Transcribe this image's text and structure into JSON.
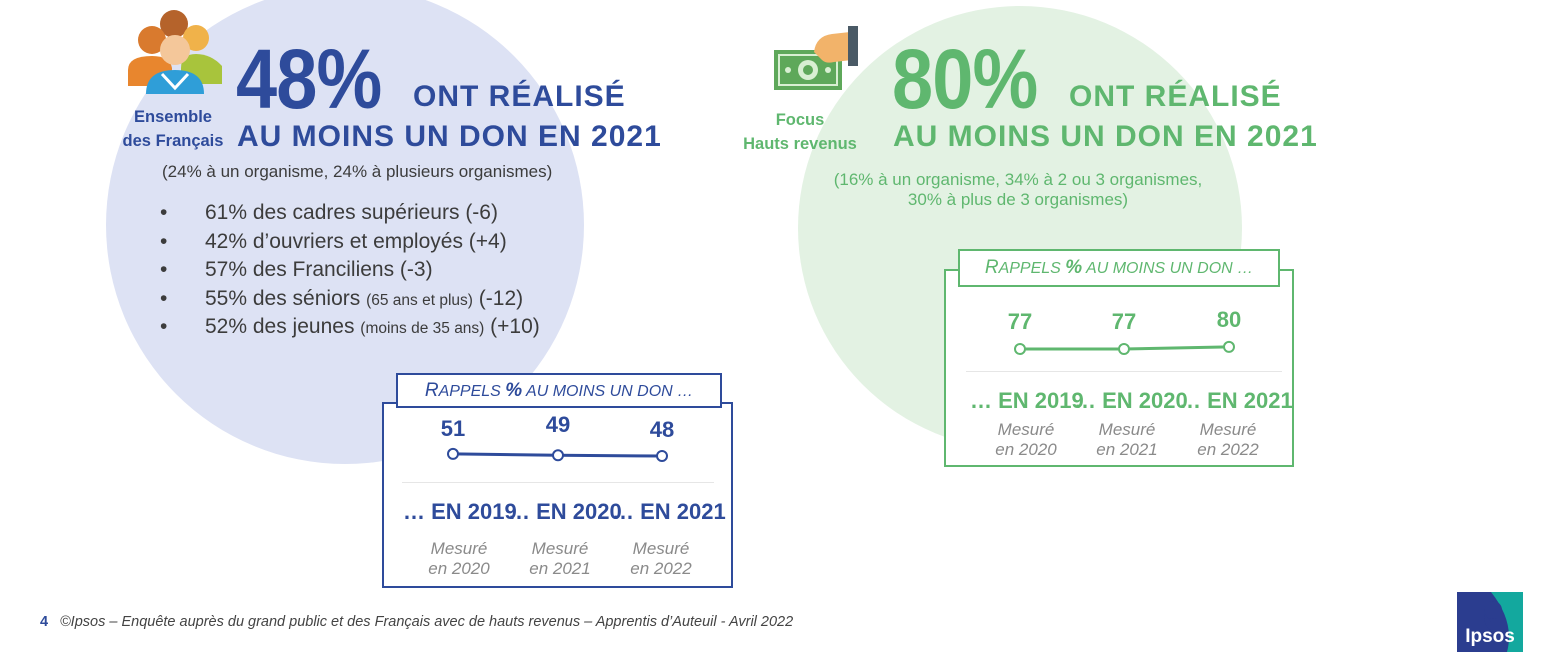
{
  "left": {
    "label": [
      "Ensemble",
      "des Français"
    ],
    "headline_pct": "48%",
    "headline_text1": "ONT RÉALISÉ",
    "headline_text2": "AU MOINS UN DON EN 2021",
    "detail": "(24% à un organisme, 24% à plusieurs organismes)",
    "bullet_symbol": "•",
    "bullets": [
      {
        "main": "61% des cadres supérieurs",
        "small": "",
        "tail": " (-6)"
      },
      {
        "main": "42% d’ouvriers et employés",
        "small": "",
        "tail": " (+4)"
      },
      {
        "main": "57% des Franciliens",
        "small": "",
        "tail": " (-3)"
      },
      {
        "main": "55% des séniors ",
        "small": "(65 ans et plus)",
        "tail": " (-12)"
      },
      {
        "main": "52% des jeunes ",
        "small": "(moins de 35 ans)",
        "tail": " (+10)"
      }
    ],
    "recall": {
      "title_initial": "R",
      "title_rest": "APPELS",
      "title_pct": "%",
      "title_suffix": "AU MOINS UN DON …",
      "years": [
        "… EN 2019",
        "… EN 2020",
        "… EN 2021"
      ],
      "measured": [
        [
          "Mesuré",
          "en 2020"
        ],
        [
          "Mesuré",
          "en 2021"
        ],
        [
          "Mesuré",
          "en 2022"
        ]
      ]
    }
  },
  "right": {
    "label": [
      "Focus",
      "Hauts revenus"
    ],
    "headline_pct": "80%",
    "headline_text1": "ONT RÉALISÉ",
    "headline_text2": "AU MOINS UN DON EN 2021",
    "detail": [
      "(16% à un organisme, 34% à 2 ou 3 organismes,",
      "30% à plus de 3 organismes)"
    ],
    "recall": {
      "title_initial": "R",
      "title_rest": "APPELS",
      "title_pct": "%",
      "title_suffix": "AU MOINS UN DON …",
      "years": [
        "… EN 2019",
        "… EN 2020",
        "… EN 2021"
      ],
      "measured": [
        [
          "Mesuré",
          "en 2020"
        ],
        [
          "Mesuré",
          "en 2021"
        ],
        [
          "Mesuré",
          "en 2022"
        ]
      ]
    }
  },
  "chart_data": [
    {
      "type": "line",
      "title": "Rappels % au moins un don … (Ensemble des Français)",
      "categories": [
        "… EN 2019",
        "… EN 2020",
        "… EN 2021"
      ],
      "values": [
        51,
        49,
        48
      ],
      "value_labels": [
        "51",
        "49",
        "48"
      ],
      "color": "#2e4b9b"
    },
    {
      "type": "line",
      "title": "Rappels % au moins un don … (Focus Hauts revenus)",
      "categories": [
        "… EN 2019",
        "… EN 2020",
        "… EN 2021"
      ],
      "values": [
        77,
        77,
        80
      ],
      "value_labels": [
        "77",
        "77",
        "80"
      ],
      "color": "#5fb76f"
    }
  ],
  "footer": {
    "page_number": "4",
    "text": "©Ipsos – Enquête auprès du grand public et des Français avec de hauts revenus – Apprentis d’Auteuil - Avril 2022"
  },
  "logo": {
    "text": "Ipsos"
  },
  "colors": {
    "blue": "#2e4b9b",
    "blue_circle": "#dde2f4",
    "green": "#5fb76f",
    "green_circle": "#e3f2e3",
    "grey_text": "#3c3c3c",
    "logo_blue": "#2b3d8f",
    "logo_teal": "#13a89e"
  }
}
